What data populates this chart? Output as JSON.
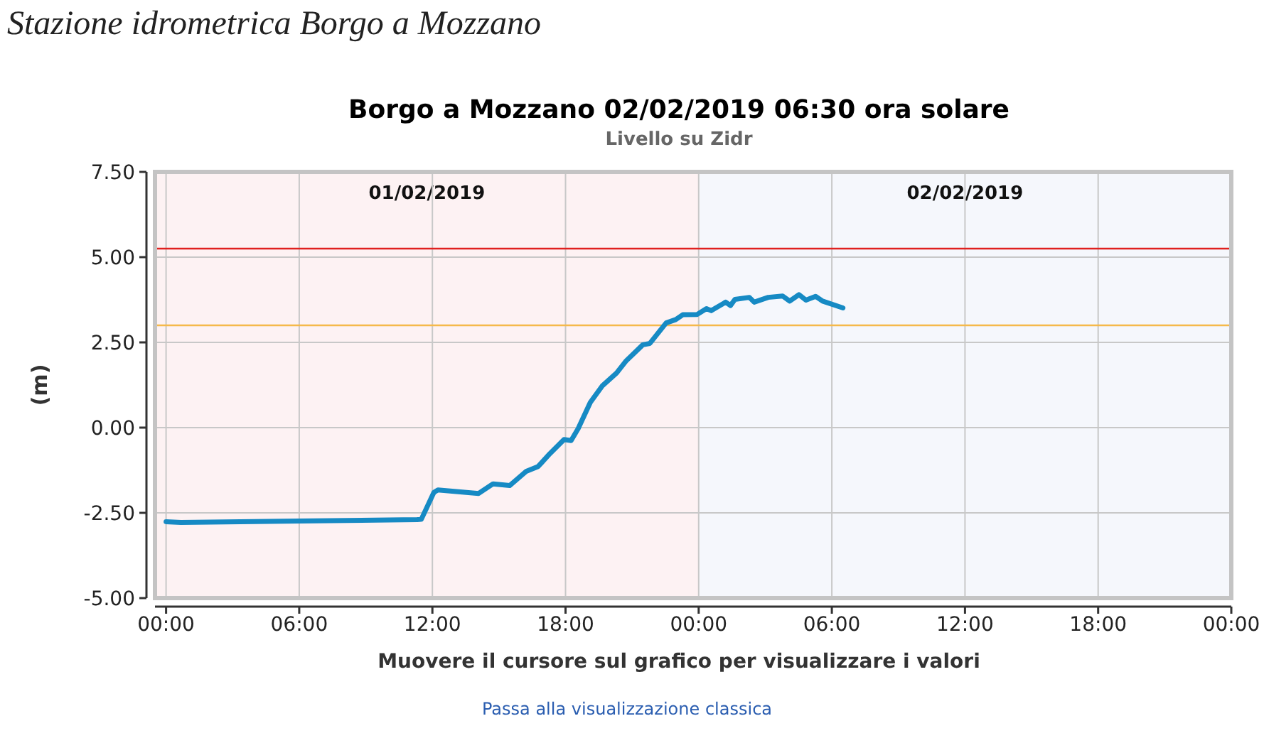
{
  "chart_data": {
    "type": "line",
    "title": "Borgo a Mozzano 02/02/2019 06:30 ora solare",
    "subtitle": "Livello su Zidr",
    "xlabel": "Muovere il cursore sul grafico per visualizzare i valori",
    "ylabel": "(m)",
    "annotations": [
      "Stazione idrometrica Borgo a Mozzano",
      "Passa alla visualizzazione classica"
    ],
    "x": [
      "2019-02-01T00:00",
      "2019-02-01T00:40",
      "2019-02-01T06:00",
      "2019-02-01T11:19",
      "2019-02-01T11:30",
      "2019-02-01T12:04",
      "2019-02-01T12:15",
      "2019-02-01T14:05",
      "2019-02-01T14:44",
      "2019-02-01T15:29",
      "2019-02-01T16:14",
      "2019-02-01T16:46",
      "2019-02-01T17:18",
      "2019-02-01T17:56",
      "2019-02-01T18:15",
      "2019-02-01T18:34",
      "2019-02-01T19:07",
      "2019-02-01T19:39",
      "2019-02-01T20:18",
      "2019-02-01T20:44",
      "2019-02-01T21:29",
      "2019-02-01T21:48",
      "2019-02-01T22:32",
      "2019-02-01T22:58",
      "2019-02-01T23:17",
      "2019-02-01T23:56",
      "2019-02-02T00:21",
      "2019-02-02T00:34",
      "2019-02-02T01:13",
      "2019-02-02T01:26",
      "2019-02-02T01:38",
      "2019-02-02T02:17",
      "2019-02-02T02:30",
      "2019-02-02T03:08",
      "2019-02-02T03:47",
      "2019-02-02T04:06",
      "2019-02-02T04:31",
      "2019-02-02T04:50",
      "2019-02-02T05:16",
      "2019-02-02T05:35",
      "2019-02-02T06:30"
    ],
    "series": [
      {
        "color": "#168ac4",
        "values": [
          -2.76,
          -2.78,
          -2.74,
          -2.7,
          -2.69,
          -1.9,
          -1.83,
          -1.93,
          -1.65,
          -1.7,
          -1.28,
          -1.14,
          -0.76,
          -0.35,
          -0.38,
          -0.03,
          0.74,
          1.22,
          1.6,
          1.96,
          2.43,
          2.47,
          3.07,
          3.17,
          3.31,
          3.32,
          3.49,
          3.43,
          3.68,
          3.58,
          3.76,
          3.82,
          3.68,
          3.82,
          3.86,
          3.71,
          3.9,
          3.74,
          3.85,
          3.71,
          3.51
        ]
      }
    ],
    "xlim": [
      "2019-01-31T23:30",
      "2019-02-03T00:00"
    ],
    "xticks": [
      {
        "value": "2019-02-01T00:00",
        "label": "00:00"
      },
      {
        "value": "2019-02-01T06:00",
        "label": "06:00"
      },
      {
        "value": "2019-02-01T12:00",
        "label": "12:00"
      },
      {
        "value": "2019-02-01T18:00",
        "label": "18:00"
      },
      {
        "value": "2019-02-02T00:00",
        "label": "00:00"
      },
      {
        "value": "2019-02-02T06:00",
        "label": "06:00"
      },
      {
        "value": "2019-02-02T12:00",
        "label": "12:00"
      },
      {
        "value": "2019-02-02T18:00",
        "label": "18:00"
      },
      {
        "value": "2019-02-03T00:00",
        "label": "00:00"
      }
    ],
    "ylim": [
      -5,
      7.5
    ],
    "yticks": [
      {
        "value": -5,
        "label": "-5.00"
      },
      {
        "value": -2.5,
        "label": "-2.50"
      },
      {
        "value": 0,
        "label": "0.00"
      },
      {
        "value": 2.5,
        "label": "2.50"
      },
      {
        "value": 5,
        "label": "5.00"
      },
      {
        "value": 7.5,
        "label": "7.50"
      }
    ],
    "grid": true,
    "line_style": "solid",
    "ref_lines": [
      {
        "axis": "y",
        "value": 5.25,
        "color": "#e0201e"
      },
      {
        "axis": "y",
        "value": 3.0,
        "color": "#f5b94a"
      }
    ],
    "bands": [
      {
        "axis": "x",
        "from": "2019-01-31T23:30",
        "to": "2019-02-02T00:00",
        "label": "01/02/2019",
        "color": "#fdf2f3"
      },
      {
        "axis": "x",
        "from": "2019-02-02T00:00",
        "to": "2019-02-03T00:00",
        "label": "02/02/2019",
        "color": "#f5f7fc"
      }
    ]
  }
}
